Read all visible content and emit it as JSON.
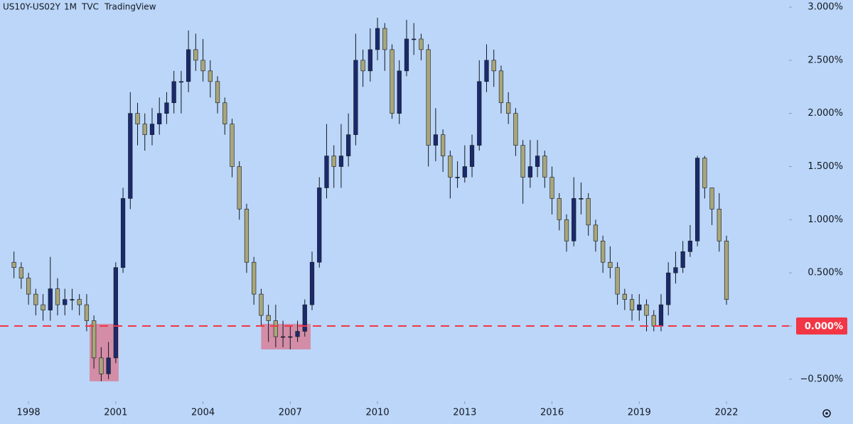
{
  "chart_data": {
    "type": "candlestick",
    "symbol": "US10Y-US02Y",
    "interval": "1M",
    "exchange": "TVC",
    "source": "TradingView",
    "up_color": "#1b2a6b",
    "down_color": "#a9a67a",
    "xlim": [
      1997.02,
      2024.15
    ],
    "xticks": [
      1998,
      2001,
      2004,
      2007,
      2010,
      2013,
      2016,
      2019,
      2022
    ],
    "ylim": [
      -0.708,
      3.067
    ],
    "yticks": [
      {
        "value": -0.5,
        "label": "−0.500%"
      },
      {
        "value": 0,
        "label": "0.000%"
      },
      {
        "value": 0.5,
        "label": "0.500%"
      },
      {
        "value": 1,
        "label": "1.000%"
      },
      {
        "value": 1.5,
        "label": "1.500%"
      },
      {
        "value": 2,
        "label": "2.000%"
      },
      {
        "value": 2.5,
        "label": "2.500%"
      },
      {
        "value": 3,
        "label": "3.000%"
      }
    ],
    "hline": {
      "value": 0,
      "label": "0.000%",
      "color": "#f23645"
    },
    "highlights": [
      {
        "x": [
          2000.1,
          2001.1
        ],
        "y": [
          -0.52,
          0.02
        ]
      },
      {
        "x": [
          2006.0,
          2007.7
        ],
        "y": [
          -0.22,
          0.02
        ]
      }
    ],
    "x": [
      1997.5,
      1997.75,
      1998,
      1998.25,
      1998.5,
      1998.75,
      1999,
      1999.25,
      1999.5,
      1999.75,
      2000,
      2000.25,
      2000.5,
      2000.75,
      2001,
      2001.25,
      2001.5,
      2001.75,
      2002,
      2002.25,
      2002.5,
      2002.75,
      2003,
      2003.25,
      2003.5,
      2003.75,
      2004,
      2004.25,
      2004.5,
      2004.75,
      2005,
      2005.25,
      2005.5,
      2005.75,
      2006,
      2006.25,
      2006.5,
      2006.75,
      2007,
      2007.25,
      2007.5,
      2007.75,
      2008,
      2008.25,
      2008.5,
      2008.75,
      2009,
      2009.25,
      2009.5,
      2009.75,
      2010,
      2010.25,
      2010.5,
      2010.75,
      2011,
      2011.25,
      2011.5,
      2011.75,
      2012,
      2012.25,
      2012.5,
      2012.75,
      2013,
      2013.25,
      2013.5,
      2013.75,
      2014,
      2014.25,
      2014.5,
      2014.75,
      2015,
      2015.25,
      2015.5,
      2015.75,
      2016,
      2016.25,
      2016.5,
      2016.75,
      2017,
      2017.25,
      2017.5,
      2017.75,
      2018,
      2018.25,
      2018.5,
      2018.75,
      2019,
      2019.25,
      2019.5,
      2019.75,
      2020,
      2020.25,
      2020.5,
      2020.75,
      2021,
      2021.25,
      2021.5,
      2021.75,
      2022
    ],
    "open": [
      0.6,
      0.55,
      0.45,
      0.3,
      0.2,
      0.15,
      0.35,
      0.2,
      0.25,
      0.25,
      0.2,
      0.05,
      -0.3,
      -0.45,
      -0.3,
      0.55,
      1.2,
      2.0,
      1.9,
      1.8,
      1.9,
      2.0,
      2.1,
      2.3,
      2.3,
      2.6,
      2.5,
      2.4,
      2.3,
      2.1,
      1.9,
      1.5,
      1.1,
      0.6,
      0.3,
      0.1,
      0.05,
      -0.1,
      -0.1,
      -0.1,
      -0.05,
      0.2,
      0.6,
      1.3,
      1.6,
      1.5,
      1.6,
      1.8,
      2.5,
      2.4,
      2.6,
      2.8,
      2.6,
      2.0,
      2.4,
      2.7,
      2.7,
      2.6,
      1.7,
      1.8,
      1.6,
      1.4,
      1.4,
      1.5,
      1.7,
      2.3,
      2.5,
      2.4,
      2.1,
      2.0,
      1.7,
      1.4,
      1.5,
      1.6,
      1.4,
      1.2,
      1.0,
      0.8,
      1.2,
      1.2,
      0.95,
      0.8,
      0.6,
      0.55,
      0.3,
      0.25,
      0.15,
      0.2,
      0.1,
      0,
      0.2,
      0.5,
      0.55,
      0.7,
      0.8,
      1.58,
      1.3,
      1.1,
      0.8
    ],
    "high": [
      0.7,
      0.6,
      0.5,
      0.35,
      0.3,
      0.65,
      0.45,
      0.35,
      0.35,
      0.3,
      0.3,
      0.1,
      -0.2,
      -0.15,
      0.6,
      1.3,
      2.2,
      2.1,
      2.0,
      2.05,
      2.15,
      2.2,
      2.4,
      2.4,
      2.78,
      2.75,
      2.7,
      2.5,
      2.35,
      2.15,
      1.95,
      1.55,
      1.15,
      0.65,
      0.35,
      0.2,
      0.2,
      0.05,
      0,
      0.05,
      0.25,
      0.7,
      1.4,
      1.9,
      1.7,
      1.9,
      2.0,
      2.75,
      2.6,
      2.8,
      2.9,
      2.85,
      2.65,
      2.5,
      2.88,
      2.85,
      2.75,
      2.65,
      2.05,
      1.85,
      1.65,
      1.55,
      1.7,
      1.8,
      2.5,
      2.65,
      2.6,
      2.45,
      2.2,
      2.05,
      1.75,
      1.75,
      1.75,
      1.65,
      1.5,
      1.25,
      1.05,
      1.4,
      1.35,
      1.25,
      1.0,
      0.85,
      0.75,
      0.6,
      0.35,
      0.3,
      0.3,
      0.25,
      0.15,
      0.3,
      0.6,
      0.7,
      0.8,
      0.95,
      1.6,
      1.6,
      1.3,
      1.25,
      0.85
    ],
    "low": [
      0.45,
      0.35,
      0.2,
      0.1,
      0.05,
      0.05,
      0.1,
      0.1,
      0.15,
      0.1,
      -0.05,
      -0.4,
      -0.52,
      -0.5,
      -0.35,
      0.5,
      1.1,
      1.7,
      1.65,
      1.7,
      1.8,
      1.9,
      2.0,
      2.0,
      2.2,
      2.4,
      2.3,
      2.15,
      2.0,
      1.8,
      1.4,
      1.0,
      0.5,
      0.2,
      0,
      -0.15,
      -0.2,
      -0.2,
      -0.22,
      -0.15,
      -0.1,
      0.15,
      0.55,
      1.2,
      1.3,
      1.3,
      1.5,
      1.7,
      2.25,
      2.3,
      2.5,
      2.4,
      1.95,
      1.9,
      2.35,
      2.55,
      2.5,
      1.5,
      1.55,
      1.45,
      1.2,
      1.3,
      1.35,
      1.4,
      1.65,
      2.2,
      2.25,
      2.0,
      1.9,
      1.6,
      1.15,
      1.3,
      1.4,
      1.3,
      1.05,
      0.9,
      0.7,
      0.75,
      1.05,
      0.85,
      0.7,
      0.5,
      0.45,
      0.2,
      0.15,
      0.05,
      0.05,
      -0.05,
      -0.05,
      -0.05,
      0.1,
      0.4,
      0.5,
      0.65,
      0.75,
      1.2,
      0.95,
      0.7,
      0.2
    ],
    "close": [
      0.55,
      0.45,
      0.3,
      0.2,
      0.15,
      0.35,
      0.2,
      0.25,
      0.25,
      0.2,
      0.05,
      -0.3,
      -0.45,
      -0.3,
      0.55,
      1.2,
      2.0,
      1.9,
      1.8,
      1.9,
      2.0,
      2.1,
      2.3,
      2.3,
      2.6,
      2.5,
      2.4,
      2.3,
      2.1,
      1.9,
      1.5,
      1.1,
      0.6,
      0.3,
      0.1,
      0.05,
      -0.1,
      -0.1,
      -0.1,
      -0.05,
      0.2,
      0.6,
      1.3,
      1.6,
      1.5,
      1.6,
      1.8,
      2.5,
      2.4,
      2.6,
      2.8,
      2.6,
      2.0,
      2.4,
      2.7,
      2.7,
      2.6,
      1.7,
      1.8,
      1.6,
      1.4,
      1.4,
      1.5,
      1.7,
      2.3,
      2.5,
      2.4,
      2.1,
      2.0,
      1.7,
      1.4,
      1.5,
      1.6,
      1.4,
      1.2,
      1.0,
      0.8,
      1.2,
      1.2,
      0.95,
      0.8,
      0.6,
      0.55,
      0.3,
      0.25,
      0.15,
      0.2,
      0.1,
      0,
      0.2,
      0.5,
      0.55,
      0.7,
      0.8,
      1.58,
      1.3,
      1.1,
      0.8,
      0.25
    ]
  }
}
